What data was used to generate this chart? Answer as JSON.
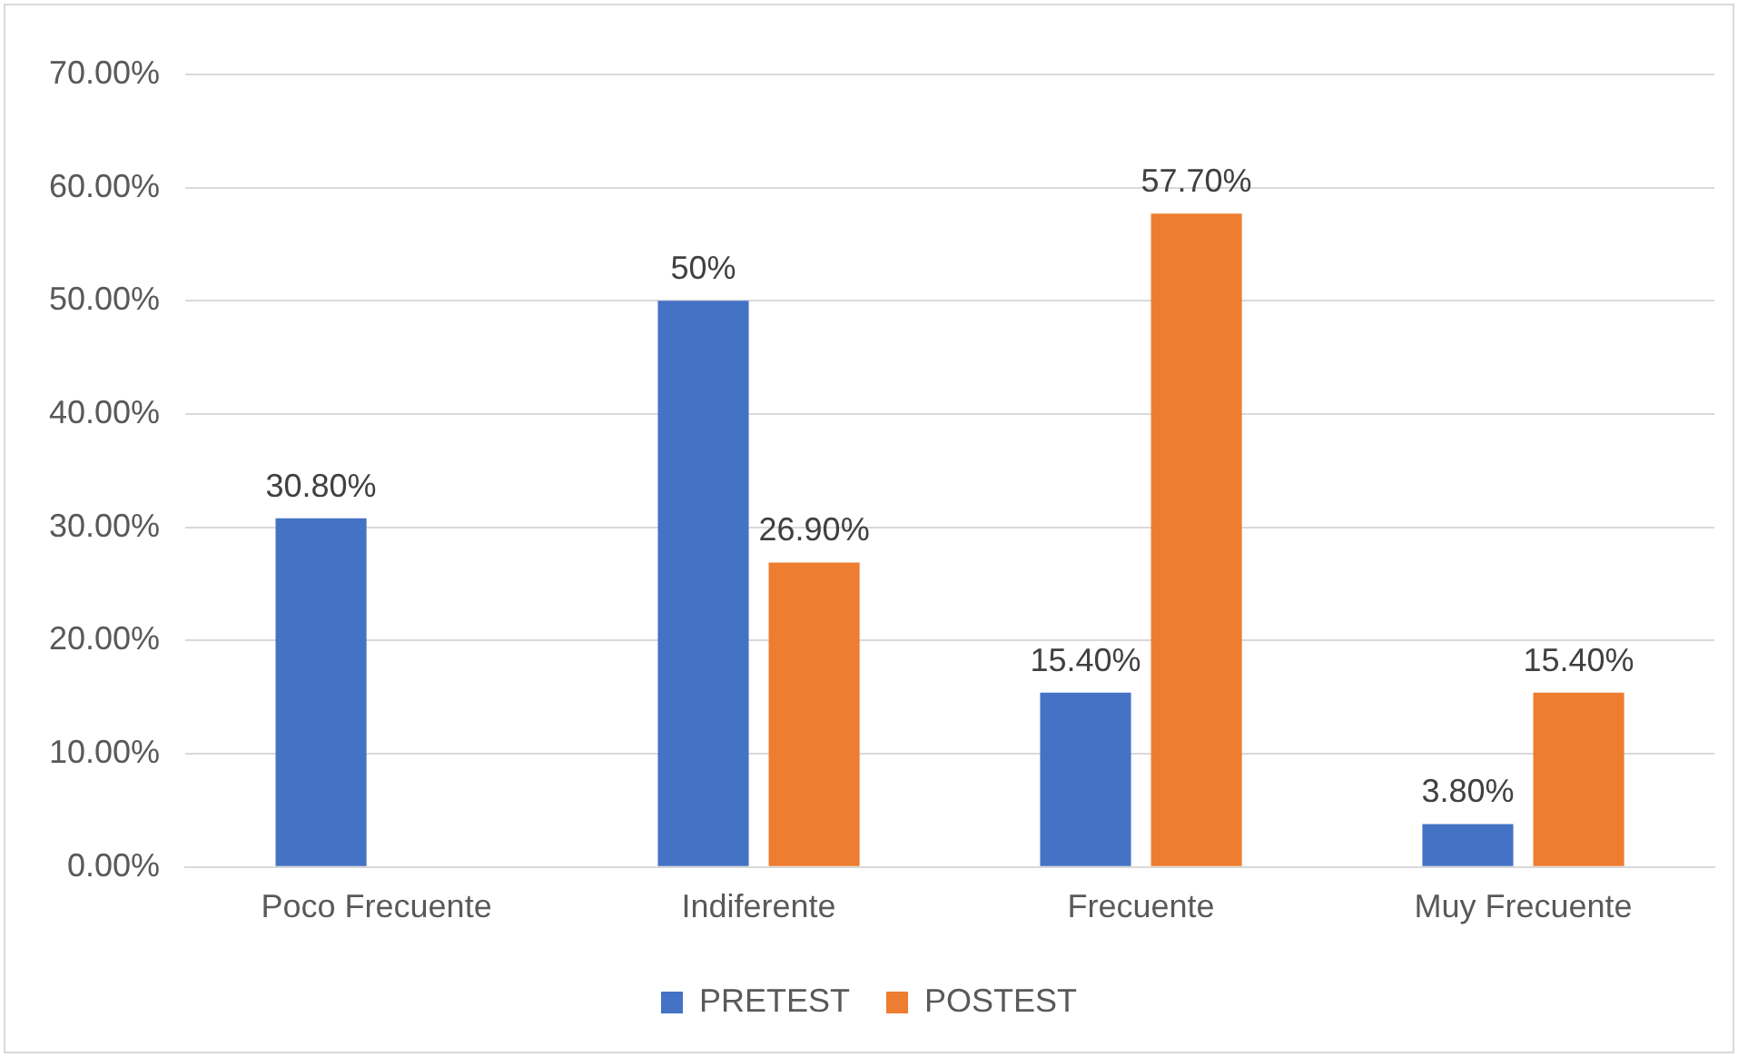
{
  "chart_data": {
    "type": "bar",
    "categories": [
      "Poco Frecuente",
      "Indiferente",
      "Frecuente",
      "Muy Frecuente"
    ],
    "series": [
      {
        "name": "PRETEST",
        "color": "#4472c4",
        "values": [
          30.8,
          50,
          15.4,
          3.8
        ],
        "value_labels": [
          "30.80%",
          "50%",
          "15.40%",
          "3.80%"
        ]
      },
      {
        "name": "POSTEST",
        "color": "#ed7d31",
        "values": [
          0,
          26.9,
          57.7,
          15.4
        ],
        "value_labels": [
          null,
          "26.90%",
          "57.70%",
          "15.40%"
        ]
      }
    ],
    "ylim": [
      0,
      70
    ],
    "yticks": [
      {
        "value": 0,
        "label": "0.00%"
      },
      {
        "value": 10,
        "label": "10.00%"
      },
      {
        "value": 20,
        "label": "20.00%"
      },
      {
        "value": 30,
        "label": "30.00%"
      },
      {
        "value": 40,
        "label": "40.00%"
      },
      {
        "value": 50,
        "label": "50.00%"
      },
      {
        "value": 60,
        "label": "60.00%"
      },
      {
        "value": 70,
        "label": "70.00%"
      }
    ],
    "grid": "y",
    "legend": "bottom"
  }
}
